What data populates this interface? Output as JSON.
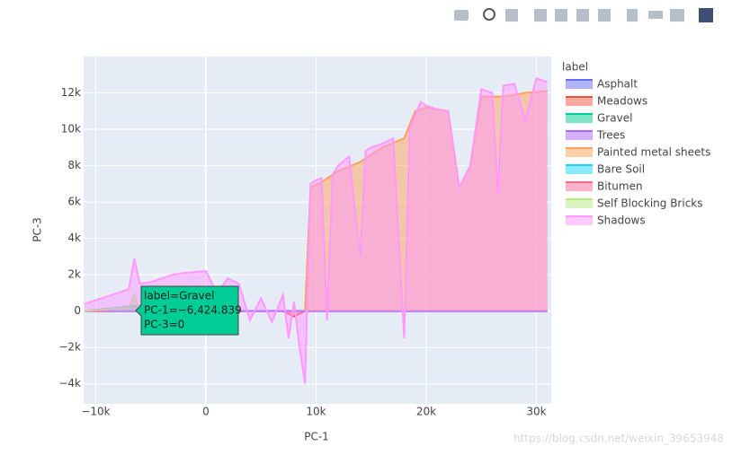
{
  "chart_data": {
    "type": "area",
    "x_label": "PC-1",
    "y_label": "PC-3",
    "legend_title": "label",
    "xlim": [
      -11100,
      31350
    ],
    "ylim": [
      -5100,
      14000
    ],
    "xticks": [
      {
        "value": -10000,
        "label": "−10k"
      },
      0,
      {
        "value": 10000,
        "label": "10k"
      },
      {
        "value": 20000,
        "label": "20k"
      },
      {
        "value": 30000,
        "label": "30k"
      }
    ],
    "yticks": [
      {
        "value": -4000,
        "label": "−4k"
      },
      {
        "value": -2000,
        "label": "−2k"
      },
      0,
      {
        "value": 2000,
        "label": "2k"
      },
      {
        "value": 4000,
        "label": "4k"
      },
      {
        "value": 6000,
        "label": "6k"
      },
      {
        "value": 8000,
        "label": "8k"
      },
      {
        "value": 10000,
        "label": "10k"
      },
      {
        "value": 12000,
        "label": "12k"
      }
    ],
    "grid": true,
    "series": [
      {
        "name": "Asphalt",
        "color": "#636efa",
        "x": [
          -11000,
          31000
        ],
        "values": [
          0,
          0
        ]
      },
      {
        "name": "Meadows",
        "color": "#EF553B",
        "x": [
          7000,
          8000,
          9000
        ],
        "values": [
          0,
          -300,
          0
        ]
      },
      {
        "name": "Gravel",
        "color": "#00cc96",
        "x": [
          -11000,
          -6000,
          -5500
        ],
        "values": [
          0,
          300,
          0
        ]
      },
      {
        "name": "Trees",
        "color": "#ab63fa",
        "x": [
          -11000,
          31000
        ],
        "values": [
          0,
          0
        ]
      },
      {
        "name": "Painted metal sheets",
        "color": "#FFA15A",
        "x": [
          9000,
          9500,
          10500,
          12000,
          14000,
          16000,
          18000,
          19000,
          20000,
          21000,
          22000,
          23000,
          24000,
          25000,
          27000,
          29000,
          31000
        ],
        "values": [
          0,
          6800,
          7100,
          7700,
          8200,
          9000,
          9500,
          11000,
          11200,
          11100,
          11000,
          6800,
          8000,
          11800,
          11800,
          12000,
          12100
        ]
      },
      {
        "name": "Bare Soil",
        "color": "#19d3f3",
        "x": [
          -11000,
          -9000
        ],
        "values": [
          0,
          0
        ]
      },
      {
        "name": "Bitumen",
        "color": "#FF6692",
        "x": [
          -11000,
          -9000
        ],
        "values": [
          0,
          0
        ]
      },
      {
        "name": "Self Blocking Bricks",
        "color": "#B6E880",
        "x": [
          -11000,
          -7000,
          -6500,
          -6000
        ],
        "values": [
          0,
          200,
          900,
          0
        ]
      },
      {
        "name": "Shadows",
        "color": "#FF97FF",
        "x": [
          -11000,
          -10000,
          -9000,
          -8000,
          -7000,
          -6500,
          -6000,
          -5000,
          -4000,
          -3000,
          -2000,
          0,
          1000,
          2000,
          3000,
          4000,
          5000,
          6000,
          7000,
          7500,
          8000,
          8500,
          9000,
          9500,
          10000,
          10500,
          11000,
          11500,
          12000,
          13000,
          14000,
          14500,
          15000,
          16000,
          17000,
          18000,
          18500,
          19000,
          19500,
          20000,
          21000,
          22000,
          23000,
          24000,
          25000,
          26000,
          26500,
          27000,
          28000,
          29000,
          30000,
          31000
        ],
        "values": [
          400,
          600,
          800,
          1000,
          1200,
          2900,
          1500,
          1600,
          1800,
          2000,
          2100,
          2200,
          1000,
          1800,
          1500,
          -500,
          700,
          -600,
          900,
          -1500,
          500,
          -2000,
          -4000,
          7000,
          7200,
          7300,
          -500,
          7500,
          8000,
          8500,
          3000,
          8800,
          9000,
          9200,
          9500,
          -1500,
          10000,
          10800,
          11500,
          11300,
          11100,
          11000,
          6800,
          8000,
          12200,
          12000,
          6500,
          12400,
          12500,
          10500,
          12800,
          12600
        ]
      }
    ],
    "tooltip": {
      "lines": [
        "label=Gravel",
        "PC-1=−6,424.839",
        "PC-3=0"
      ]
    },
    "watermark": "https://blog.csdn.net/weixin_39653948"
  }
}
